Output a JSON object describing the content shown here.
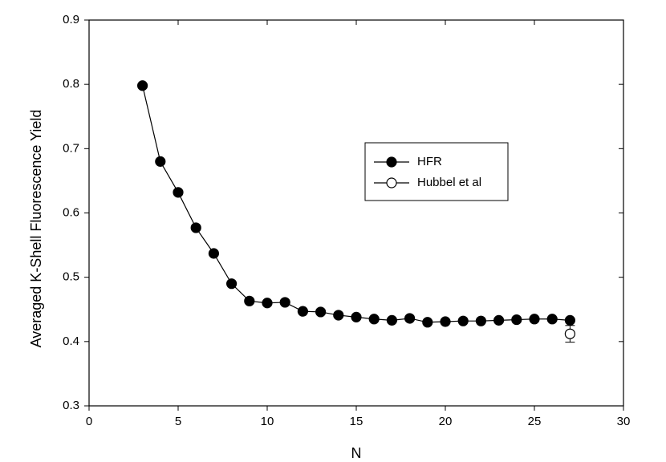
{
  "chart_data": {
    "type": "line",
    "x_label": "N",
    "y_label": "Averaged K-Shell Fluorescence Yield",
    "xlim": [
      0,
      30
    ],
    "xticks": [
      0,
      5,
      10,
      15,
      20,
      25,
      30
    ],
    "ylim": [
      0.3,
      0.9
    ],
    "yticks": [
      0.3,
      0.4,
      0.5,
      0.6,
      0.7,
      0.8,
      0.9
    ],
    "series": [
      {
        "name": "HFR",
        "color": "#000000",
        "marker": "filled",
        "x": [
          3,
          4,
          5,
          6,
          7,
          8,
          9,
          10,
          11,
          12,
          13,
          14,
          15,
          16,
          17,
          18,
          19,
          20,
          21,
          22,
          23,
          24,
          25,
          26,
          27
        ],
        "values": [
          0.798,
          0.68,
          0.632,
          0.577,
          0.537,
          0.49,
          0.463,
          0.46,
          0.461,
          0.447,
          0.446,
          0.441,
          0.438,
          0.435,
          0.433,
          0.436,
          0.43,
          0.431,
          0.432,
          0.432,
          0.433,
          0.434,
          0.435,
          0.435,
          0.433
        ]
      },
      {
        "name": "Hubbel et al",
        "color": "#000000",
        "marker": "open",
        "x": [
          27
        ],
        "values": [
          0.412
        ],
        "errors": [
          0.013
        ]
      }
    ]
  }
}
